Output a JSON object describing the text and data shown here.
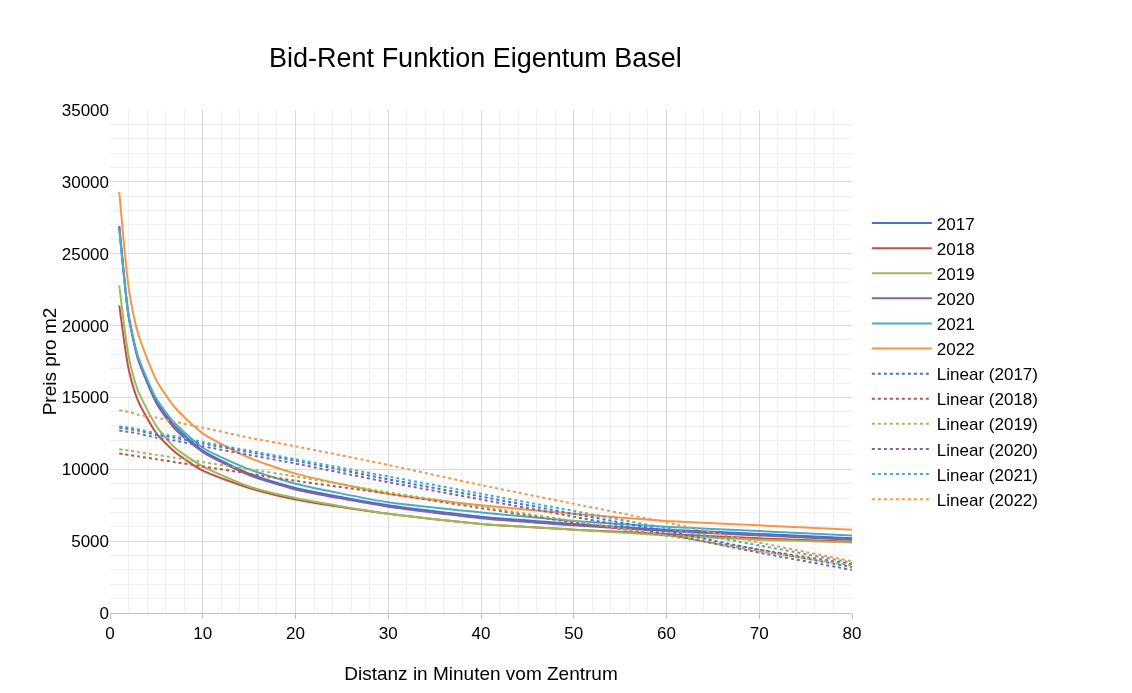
{
  "chart_data": {
    "type": "line",
    "title": "Bid-Rent Funktion Eigentum Basel",
    "xlabel": "Distanz in Minuten vom Zentrum",
    "ylabel": "Preis pro m2",
    "x": [
      1,
      2,
      3,
      5,
      7,
      10,
      15,
      20,
      30,
      40,
      50,
      60,
      70,
      80
    ],
    "series": [
      {
        "name": "2017",
        "color": "#4472c4",
        "line_style": "solid",
        "values": [
          26900,
          20700,
          17800,
          14700,
          13000,
          11300,
          9700,
          8700,
          7500,
          6700,
          6200,
          5800,
          5500,
          5200
        ]
      },
      {
        "name": "2018",
        "color": "#c0504d",
        "line_style": "solid",
        "values": [
          21400,
          17000,
          14800,
          12500,
          11200,
          9900,
          8700,
          7900,
          6900,
          6200,
          5800,
          5500,
          5200,
          4950
        ]
      },
      {
        "name": "2019",
        "color": "#9bbb59",
        "line_style": "solid",
        "values": [
          22800,
          17900,
          15500,
          13000,
          11500,
          10200,
          8800,
          8000,
          6900,
          6200,
          5800,
          5400,
          5100,
          4900
        ]
      },
      {
        "name": "2020",
        "color": "#8064a2",
        "line_style": "solid",
        "values": [
          26900,
          20700,
          17700,
          14600,
          12800,
          11200,
          9600,
          8600,
          7400,
          6600,
          6100,
          5700,
          5400,
          5100
        ]
      },
      {
        "name": "2021",
        "color": "#4bacc6",
        "line_style": "solid",
        "values": [
          26700,
          20700,
          17900,
          14900,
          13200,
          11500,
          10000,
          9000,
          7700,
          7000,
          6400,
          6000,
          5700,
          5400
        ]
      },
      {
        "name": "2022",
        "color": "#f79646",
        "line_style": "solid",
        "values": [
          29300,
          22700,
          19500,
          16200,
          14300,
          12500,
          10800,
          9700,
          8300,
          7500,
          6900,
          6400,
          6100,
          5800
        ]
      },
      {
        "name": "Linear (2017)",
        "color": "#4472c4",
        "line_style": "dotted",
        "values": [
          12900,
          12800,
          12700,
          12400,
          12200,
          11800,
          11200,
          10600,
          9300,
          8100,
          6900,
          5700,
          4400,
          3200
        ]
      },
      {
        "name": "Linear (2018)",
        "color": "#c0504d",
        "line_style": "dotted",
        "values": [
          11100,
          11000,
          10900,
          10700,
          10500,
          10200,
          9700,
          9200,
          8300,
          7300,
          6300,
          5400,
          4400,
          3400
        ]
      },
      {
        "name": "Linear (2019)",
        "color": "#9bbb59",
        "line_style": "dotted",
        "values": [
          11400,
          11300,
          11200,
          11000,
          10800,
          10500,
          10000,
          9500,
          8400,
          7400,
          6400,
          5400,
          4300,
          3300
        ]
      },
      {
        "name": "Linear (2020)",
        "color": "#8064a2",
        "line_style": "dotted",
        "values": [
          12700,
          12600,
          12500,
          12200,
          12000,
          11600,
          11000,
          10400,
          9100,
          7900,
          6700,
          5500,
          4200,
          3000
        ]
      },
      {
        "name": "Linear (2021)",
        "color": "#4bacc6",
        "line_style": "dotted",
        "values": [
          13000,
          12900,
          12800,
          12500,
          12300,
          11900,
          11300,
          10700,
          9500,
          8300,
          7100,
          5900,
          4700,
          3500
        ]
      },
      {
        "name": "Linear (2022)",
        "color": "#f79646",
        "line_style": "dotted",
        "values": [
          14100,
          14000,
          13800,
          13600,
          13300,
          12900,
          12200,
          11600,
          10300,
          8900,
          7600,
          6300,
          4900,
          3600
        ]
      }
    ],
    "xlim": [
      0,
      80
    ],
    "xticks": [
      0,
      10,
      20,
      30,
      40,
      50,
      60,
      70,
      80
    ],
    "ylim": [
      0,
      35000
    ],
    "yticks": [
      0,
      5000,
      10000,
      15000,
      20000,
      25000,
      30000,
      35000
    ],
    "grid": true,
    "legend": "right",
    "marker": "none"
  }
}
